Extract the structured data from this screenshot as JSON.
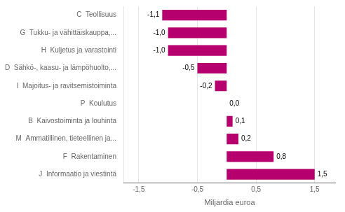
{
  "chart_data": {
    "type": "bar",
    "orientation": "horizontal",
    "categories": [
      "C  Teollisuus",
      "G  Tukku- ja vähittäiskauppa,...",
      "H  Kuljetus ja varastointi",
      "D  Sähkö-, kaasu- ja lämpöhuolto,...",
      "I  Majoitus- ja ravitsemistoiminta",
      "P  Koulutus",
      "B  Kaivostoiminta ja louhinta",
      "M  Ammatillinen, tieteellinen ja...",
      "F  Rakentaminen",
      "J  Informaatio ja viestintä"
    ],
    "values": [
      -1.1,
      -1.0,
      -1.0,
      -0.5,
      -0.2,
      0.0,
      0.1,
      0.2,
      0.8,
      1.5
    ],
    "value_labels": [
      "-1,1",
      "-1,0",
      "-1,0",
      "-0,5",
      "-0,2",
      "0,0",
      "0,1",
      "0,2",
      "0,8",
      "1,5"
    ],
    "data_labels": true,
    "color": "#b5006e",
    "xlabel": "Miljardia euroa",
    "xlim": [
      -1.75,
      1.85
    ],
    "xticks": [
      {
        "value": -1.5,
        "label": "-1,5"
      },
      {
        "value": -0.5,
        "label": "-0,5"
      },
      {
        "value": 0.5,
        "label": "0,5"
      },
      {
        "value": 1.5,
        "label": "1,5"
      }
    ],
    "grid": true
  }
}
